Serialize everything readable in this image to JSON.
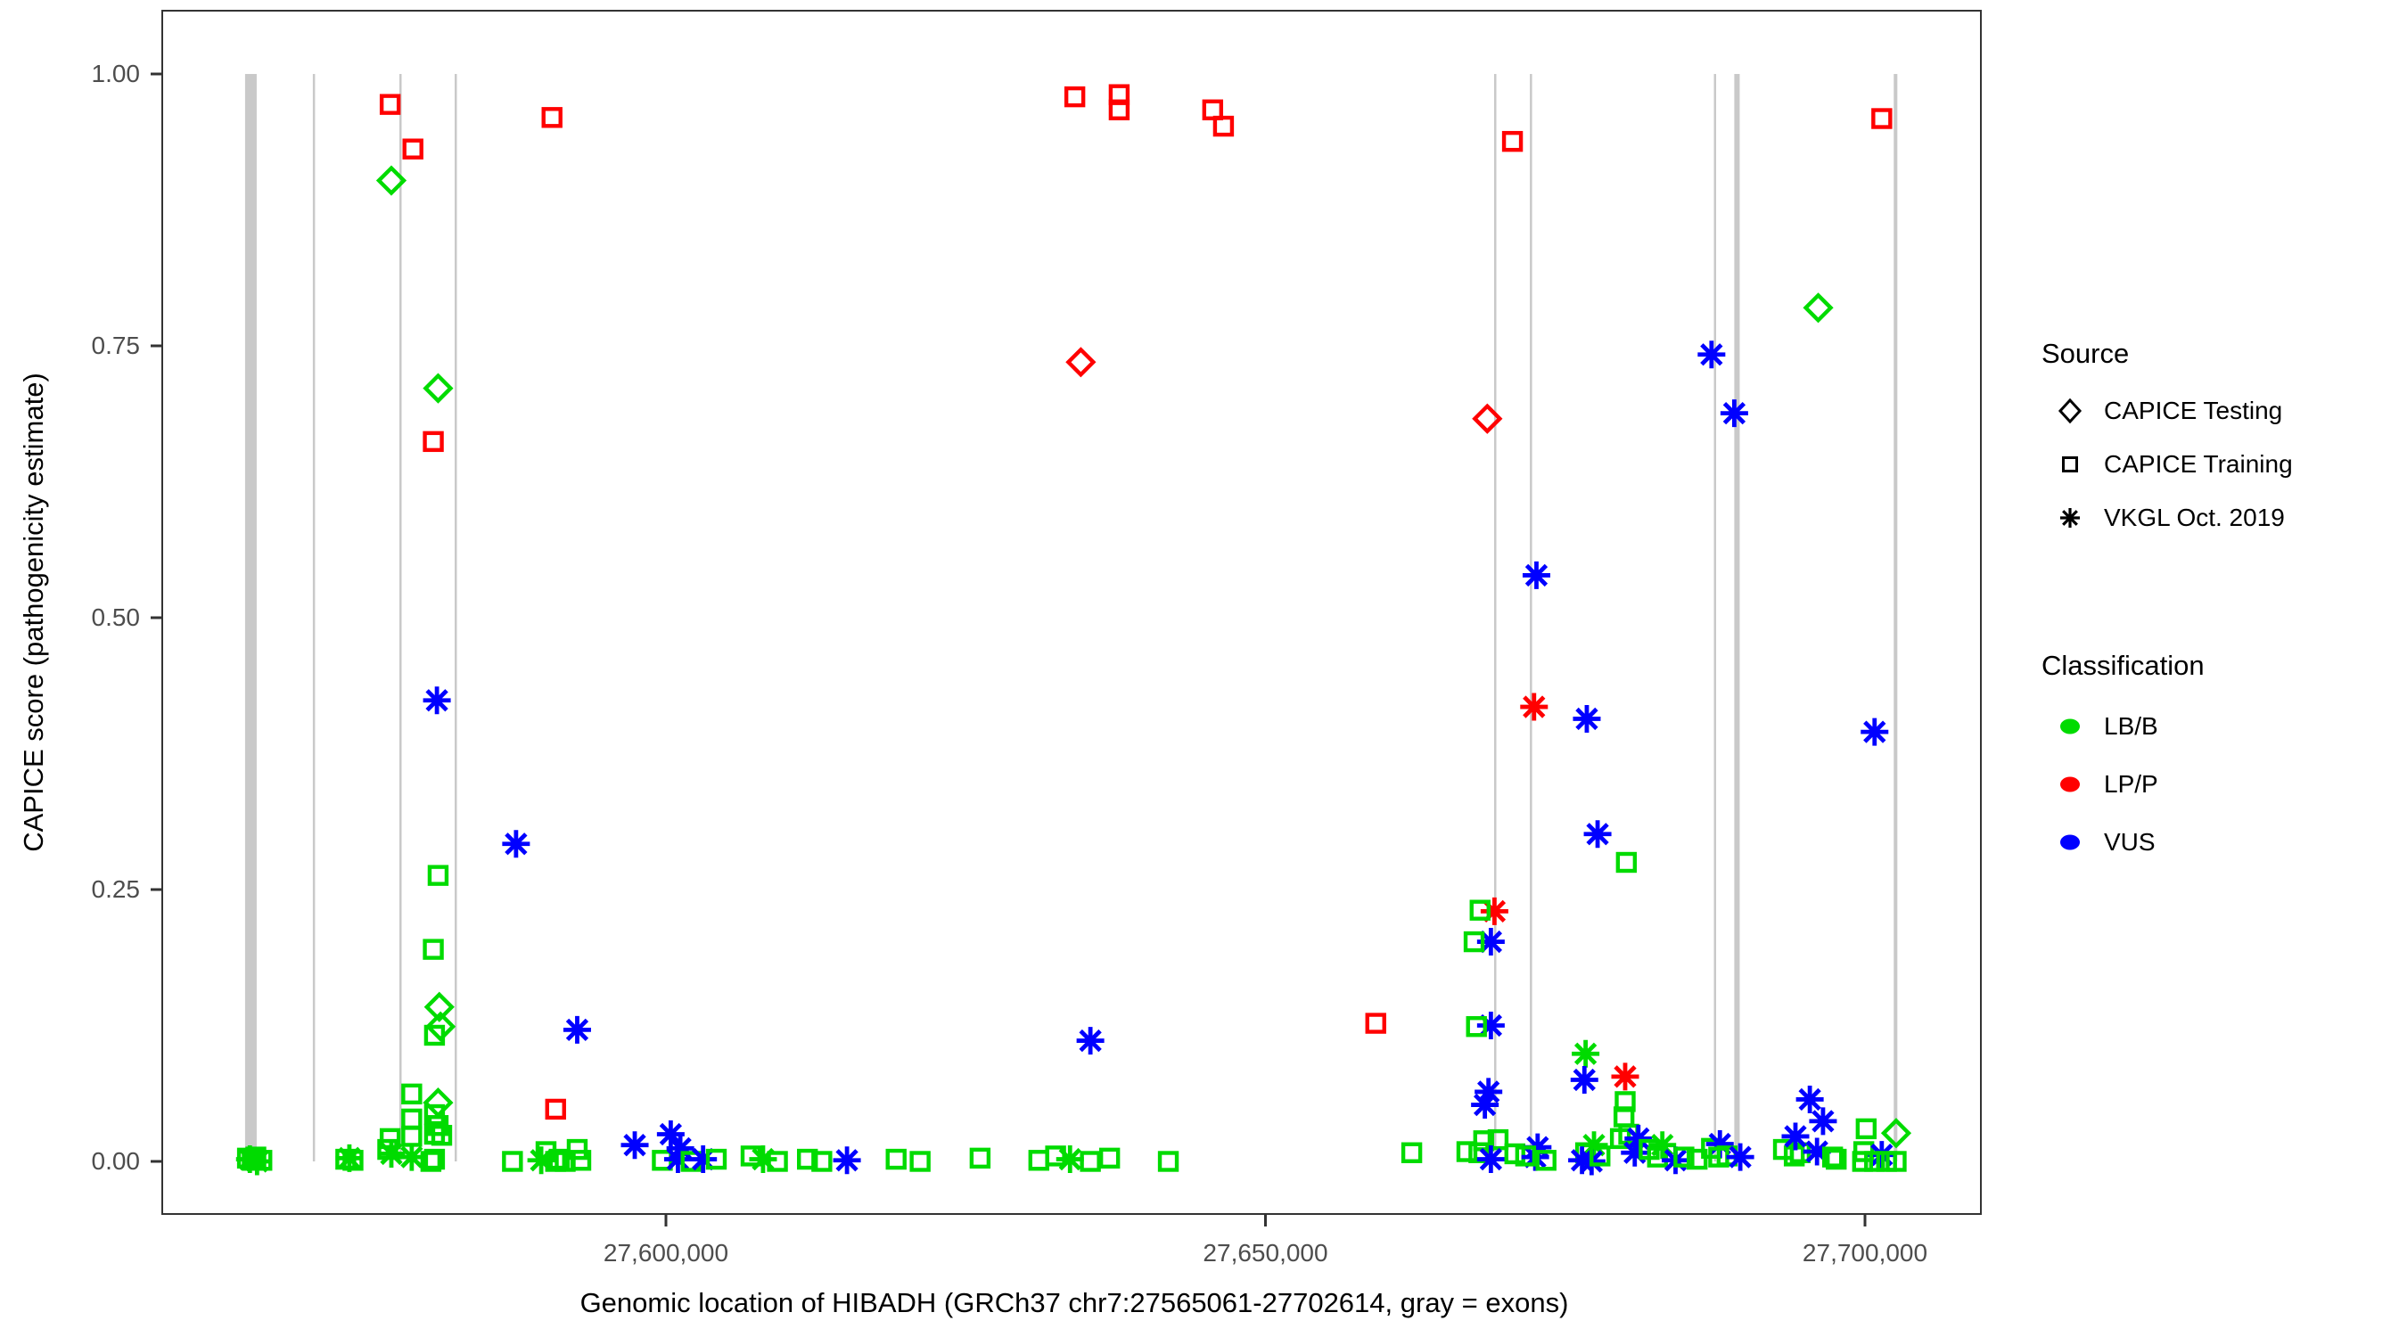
{
  "axes": {
    "y_title": "CAPICE score (pathogenicity estimate)",
    "x_title": "Genomic location of HIBADH (GRCh37 chr7:27565061-27702614, gray = exons)"
  },
  "legend": {
    "source": {
      "title": "Source",
      "items": [
        {
          "label": "CAPICE Testing",
          "shape": "diamond"
        },
        {
          "label": "CAPICE Training",
          "shape": "square"
        },
        {
          "label": "VKGL Oct. 2019",
          "shape": "asterisk"
        }
      ]
    },
    "classification": {
      "title": "Classification",
      "items": [
        {
          "label": "LB/B",
          "color": "#00DB00"
        },
        {
          "label": "LP/P",
          "color": "#FF0000"
        },
        {
          "label": "VUS",
          "color": "#0000FF"
        }
      ]
    }
  },
  "chart_data": {
    "type": "scatter",
    "title": "",
    "xlabel": "Genomic location of HIBADH (GRCh37 chr7:27565061-27702614, gray = exons)",
    "ylabel": "CAPICE score (pathogenicity estimate)",
    "xlim": [
      27557993,
      27709665
    ],
    "ylim": [
      -0.04,
      1.04
    ],
    "x_ticks": [
      {
        "value": 27600000,
        "label": "27,600,000"
      },
      {
        "value": 27650000,
        "label": "27,650,000"
      },
      {
        "value": 27700000,
        "label": "27,700,000"
      }
    ],
    "y_ticks": [
      {
        "value": 1.0,
        "label": "1.00"
      },
      {
        "value": 0.75,
        "label": "0.75"
      },
      {
        "value": 0.5,
        "label": "0.50"
      },
      {
        "value": 0.25,
        "label": "0.25"
      },
      {
        "value": 0.0,
        "label": "0.00"
      }
    ],
    "colors": {
      "LB/B": "#00DB00",
      "LP/P": "#FF0000",
      "VUS": "#0000FF",
      "exon": "#C9C9C9"
    },
    "shape_by_source": {
      "testing": "diamond",
      "training": "square",
      "vkgl": "asterisk"
    },
    "exons_note": "gray = exons",
    "exons": [
      [
        27564900,
        27565870
      ],
      [
        27570550,
        27570700
      ],
      [
        27577770,
        27577920
      ],
      [
        27582380,
        27582530
      ],
      [
        27669070,
        27669220
      ],
      [
        27672050,
        27672200
      ],
      [
        27687400,
        27687550
      ],
      [
        27689100,
        27689550
      ],
      [
        27702400,
        27702700
      ]
    ],
    "points_format": [
      "position",
      "score",
      "source",
      "classification"
    ],
    "points": [
      [
        27577000,
        0.972,
        "training",
        "LP/P"
      ],
      [
        27578900,
        0.931,
        "training",
        "LP/P"
      ],
      [
        27577100,
        0.902,
        "testing",
        "LB/B"
      ],
      [
        27590500,
        0.96,
        "training",
        "LP/P"
      ],
      [
        27581000,
        0.711,
        "testing",
        "LB/B"
      ],
      [
        27580600,
        0.662,
        "training",
        "LP/P"
      ],
      [
        27580900,
        0.424,
        "vkgl",
        "VUS"
      ],
      [
        27587500,
        0.292,
        "vkgl",
        "VUS"
      ],
      [
        27581000,
        0.263,
        "training",
        "LB/B"
      ],
      [
        27580600,
        0.195,
        "training",
        "LB/B"
      ],
      [
        27581100,
        0.142,
        "testing",
        "LB/B"
      ],
      [
        27581200,
        0.124,
        "testing",
        "LB/B"
      ],
      [
        27580700,
        0.116,
        "training",
        "LB/B"
      ],
      [
        27578800,
        0.062,
        "training",
        "LB/B"
      ],
      [
        27581000,
        0.054,
        "testing",
        "LB/B"
      ],
      [
        27580700,
        0.043,
        "training",
        "LB/B"
      ],
      [
        27578800,
        0.039,
        "training",
        "LB/B"
      ],
      [
        27581000,
        0.033,
        "training",
        "LB/B"
      ],
      [
        27580700,
        0.025,
        "training",
        "LB/B"
      ],
      [
        27581300,
        0.024,
        "training",
        "LB/B"
      ],
      [
        27578800,
        0.023,
        "training",
        "LB/B"
      ],
      [
        27577000,
        0.021,
        "training",
        "LB/B"
      ],
      [
        27576800,
        0.011,
        "training",
        "LB/B"
      ],
      [
        27577100,
        0.007,
        "vkgl",
        "LB/B"
      ],
      [
        27578800,
        0.004,
        "vkgl",
        "LB/B"
      ],
      [
        27580700,
        0.002,
        "training",
        "LB/B"
      ],
      [
        27580400,
        0.0,
        "training",
        "LB/B"
      ],
      [
        27565100,
        0.003,
        "training",
        "LB/B"
      ],
      [
        27565500,
        0.001,
        "training",
        "LB/B"
      ],
      [
        27565800,
        0.004,
        "training",
        "LB/B"
      ],
      [
        27566300,
        0.001,
        "training",
        "LB/B"
      ],
      [
        27565300,
        0.002,
        "vkgl",
        "LB/B"
      ],
      [
        27565900,
        0.0,
        "vkgl",
        "LB/B"
      ],
      [
        27573300,
        0.002,
        "training",
        "LB/B"
      ],
      [
        27573900,
        0.001,
        "training",
        "LB/B"
      ],
      [
        27573600,
        0.003,
        "vkgl",
        "LB/B"
      ],
      [
        27587200,
        0.0,
        "training",
        "LB/B"
      ],
      [
        27589600,
        0.001,
        "vkgl",
        "LB/B"
      ],
      [
        27590000,
        0.009,
        "training",
        "LB/B"
      ],
      [
        27590800,
        0.048,
        "training",
        "LP/P"
      ],
      [
        27590800,
        0.0,
        "training",
        "LB/B"
      ],
      [
        27591100,
        0.002,
        "training",
        "LB/B"
      ],
      [
        27591600,
        0.0,
        "training",
        "LB/B"
      ],
      [
        27592600,
        0.121,
        "vkgl",
        "VUS"
      ],
      [
        27592600,
        0.011,
        "training",
        "LB/B"
      ],
      [
        27592900,
        0.001,
        "training",
        "LB/B"
      ],
      [
        27597400,
        0.015,
        "vkgl",
        "VUS"
      ],
      [
        27599700,
        0.001,
        "training",
        "LB/B"
      ],
      [
        27600400,
        0.025,
        "vkgl",
        "VUS"
      ],
      [
        27601200,
        0.012,
        "vkgl",
        "VUS"
      ],
      [
        27601000,
        0.002,
        "vkgl",
        "VUS"
      ],
      [
        27602100,
        0.0,
        "training",
        "LB/B"
      ],
      [
        27603100,
        0.002,
        "vkgl",
        "VUS"
      ],
      [
        27604200,
        0.002,
        "training",
        "LB/B"
      ],
      [
        27607100,
        0.005,
        "training",
        "LB/B"
      ],
      [
        27608100,
        0.002,
        "vkgl",
        "LB/B"
      ],
      [
        27609300,
        0.0,
        "training",
        "LB/B"
      ],
      [
        27611800,
        0.002,
        "training",
        "LB/B"
      ],
      [
        27613000,
        0.0,
        "training",
        "LB/B"
      ],
      [
        27615100,
        0.001,
        "vkgl",
        "VUS"
      ],
      [
        27619200,
        0.002,
        "training",
        "LB/B"
      ],
      [
        27621200,
        0.0,
        "training",
        "LB/B"
      ],
      [
        27626200,
        0.003,
        "training",
        "LB/B"
      ],
      [
        27631100,
        0.001,
        "training",
        "LB/B"
      ],
      [
        27632500,
        0.005,
        "training",
        "LB/B"
      ],
      [
        27633700,
        0.002,
        "vkgl",
        "LB/B"
      ],
      [
        27635400,
        0.111,
        "vkgl",
        "VUS"
      ],
      [
        27635400,
        0.0,
        "training",
        "LB/B"
      ],
      [
        27637000,
        0.003,
        "training",
        "LB/B"
      ],
      [
        27641900,
        0.0,
        "training",
        "LB/B"
      ],
      [
        27659200,
        0.127,
        "training",
        "LP/P"
      ],
      [
        27662200,
        0.008,
        "training",
        "LB/B"
      ],
      [
        27634100,
        0.979,
        "training",
        "LP/P"
      ],
      [
        27637800,
        0.981,
        "training",
        "LP/P"
      ],
      [
        27637800,
        0.967,
        "training",
        "LP/P"
      ],
      [
        27645600,
        0.967,
        "training",
        "LP/P"
      ],
      [
        27646500,
        0.952,
        "training",
        "LP/P"
      ],
      [
        27634600,
        0.735,
        "testing",
        "LP/P"
      ],
      [
        27670600,
        0.938,
        "training",
        "LP/P"
      ],
      [
        27668500,
        0.683,
        "testing",
        "LP/P"
      ],
      [
        27687200,
        0.742,
        "vkgl",
        "VUS"
      ],
      [
        27689100,
        0.688,
        "vkgl",
        "VUS"
      ],
      [
        27696100,
        0.785,
        "testing",
        "LB/B"
      ],
      [
        27701400,
        0.959,
        "training",
        "LP/P"
      ],
      [
        27672600,
        0.539,
        "vkgl",
        "VUS"
      ],
      [
        27672400,
        0.418,
        "vkgl",
        "LP/P"
      ],
      [
        27676800,
        0.407,
        "vkgl",
        "VUS"
      ],
      [
        27677700,
        0.301,
        "vkgl",
        "VUS"
      ],
      [
        27680100,
        0.275,
        "training",
        "LB/B"
      ],
      [
        27669100,
        0.23,
        "vkgl",
        "LP/P"
      ],
      [
        27667900,
        0.231,
        "training",
        "LB/B"
      ],
      [
        27668800,
        0.202,
        "vkgl",
        "VUS"
      ],
      [
        27667400,
        0.202,
        "training",
        "LB/B"
      ],
      [
        27700800,
        0.395,
        "vkgl",
        "VUS"
      ],
      [
        27668800,
        0.125,
        "vkgl",
        "VUS"
      ],
      [
        27667600,
        0.124,
        "training",
        "LB/B"
      ],
      [
        27676700,
        0.099,
        "vkgl",
        "LB/B"
      ],
      [
        27676600,
        0.075,
        "vkgl",
        "VUS"
      ],
      [
        27680000,
        0.078,
        "vkgl",
        "LP/P"
      ],
      [
        27680000,
        0.055,
        "training",
        "LB/B"
      ],
      [
        27679900,
        0.041,
        "training",
        "LB/B"
      ],
      [
        27668600,
        0.064,
        "vkgl",
        "VUS"
      ],
      [
        27668300,
        0.052,
        "vkgl",
        "VUS"
      ],
      [
        27666800,
        0.009,
        "training",
        "LB/B"
      ],
      [
        27668200,
        0.019,
        "training",
        "LB/B"
      ],
      [
        27669400,
        0.02,
        "training",
        "LB/B"
      ],
      [
        27667800,
        0.008,
        "training",
        "LB/B"
      ],
      [
        27668800,
        0.002,
        "vkgl",
        "VUS"
      ],
      [
        27670800,
        0.007,
        "training",
        "LB/B"
      ],
      [
        27672700,
        0.013,
        "vkgl",
        "VUS"
      ],
      [
        27672500,
        0.004,
        "vkgl",
        "VUS"
      ],
      [
        27671700,
        0.005,
        "training",
        "LB/B"
      ],
      [
        27673400,
        0.001,
        "training",
        "LB/B"
      ],
      [
        27677400,
        0.015,
        "vkgl",
        "LB/B"
      ],
      [
        27676700,
        0.008,
        "training",
        "LB/B"
      ],
      [
        27676400,
        0.001,
        "vkgl",
        "VUS"
      ],
      [
        27677200,
        0.0,
        "vkgl",
        "VUS"
      ],
      [
        27677900,
        0.005,
        "training",
        "LB/B"
      ],
      [
        27679600,
        0.021,
        "training",
        "LB/B"
      ],
      [
        27680300,
        0.025,
        "training",
        "LB/B"
      ],
      [
        27681100,
        0.021,
        "vkgl",
        "VUS"
      ],
      [
        27680800,
        0.008,
        "vkgl",
        "VUS"
      ],
      [
        27682000,
        0.011,
        "training",
        "LB/B"
      ],
      [
        27683100,
        0.015,
        "vkgl",
        "LB/B"
      ],
      [
        27682700,
        0.004,
        "training",
        "LB/B"
      ],
      [
        27684200,
        0.001,
        "vkgl",
        "VUS"
      ],
      [
        27684900,
        0.004,
        "training",
        "LB/B"
      ],
      [
        27686000,
        0.002,
        "training",
        "LB/B"
      ],
      [
        27687200,
        0.012,
        "training",
        "LB/B"
      ],
      [
        27687900,
        0.016,
        "vkgl",
        "VUS"
      ],
      [
        27687800,
        0.004,
        "training",
        "LB/B"
      ],
      [
        27688500,
        0.005,
        "training",
        "LB/B"
      ],
      [
        27689600,
        0.004,
        "vkgl",
        "VUS"
      ],
      [
        27693200,
        0.011,
        "training",
        "LB/B"
      ],
      [
        27694100,
        0.005,
        "training",
        "LB/B"
      ],
      [
        27694600,
        0.008,
        "training",
        "LB/B"
      ],
      [
        27695400,
        0.057,
        "vkgl",
        "VUS"
      ],
      [
        27696500,
        0.037,
        "vkgl",
        "VUS"
      ],
      [
        27694200,
        0.023,
        "vkgl",
        "VUS"
      ],
      [
        27696000,
        0.009,
        "vkgl",
        "VUS"
      ],
      [
        27697300,
        0.004,
        "training",
        "LB/B"
      ],
      [
        27697600,
        0.002,
        "training",
        "LB/B"
      ],
      [
        27700100,
        0.03,
        "training",
        "LB/B"
      ],
      [
        27702600,
        0.026,
        "testing",
        "LB/B"
      ],
      [
        27699900,
        0.009,
        "training",
        "LB/B"
      ],
      [
        27701400,
        0.006,
        "vkgl",
        "VUS"
      ],
      [
        27699800,
        0.0,
        "training",
        "LB/B"
      ],
      [
        27700800,
        0.0,
        "training",
        "LB/B"
      ],
      [
        27701800,
        0.0,
        "training",
        "LB/B"
      ],
      [
        27702600,
        0.0,
        "training",
        "LB/B"
      ]
    ]
  }
}
